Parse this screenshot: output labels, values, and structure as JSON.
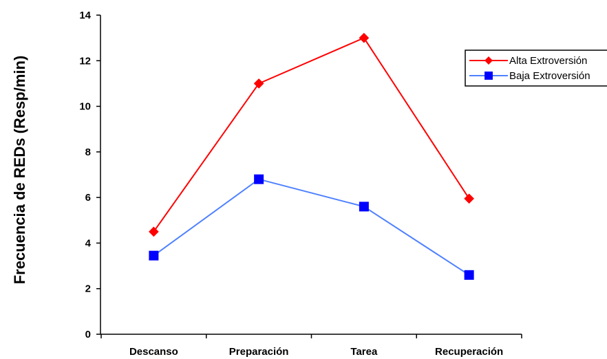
{
  "chart_data": {
    "type": "line",
    "title": "",
    "xlabel": "",
    "ylabel": "Frecuencia de REDs (Resp/min)",
    "categories": [
      "Descanso",
      "Preparación",
      "Tarea",
      "Recuperación"
    ],
    "ylim": [
      0,
      14
    ],
    "yticks": [
      0,
      2,
      4,
      6,
      8,
      10,
      12,
      14
    ],
    "grid": false,
    "legend_position": "top-right",
    "series": [
      {
        "name": "Alta Extroversión",
        "values": [
          4.5,
          11.0,
          13.0,
          5.95
        ],
        "color": "#ff0000",
        "marker": "diamond",
        "marker_color": "#ff0000"
      },
      {
        "name": "Baja Extroversión",
        "values": [
          3.45,
          6.8,
          5.6,
          2.6
        ],
        "color": "#4f81ff",
        "marker": "square",
        "marker_color": "#0000ff"
      }
    ]
  }
}
